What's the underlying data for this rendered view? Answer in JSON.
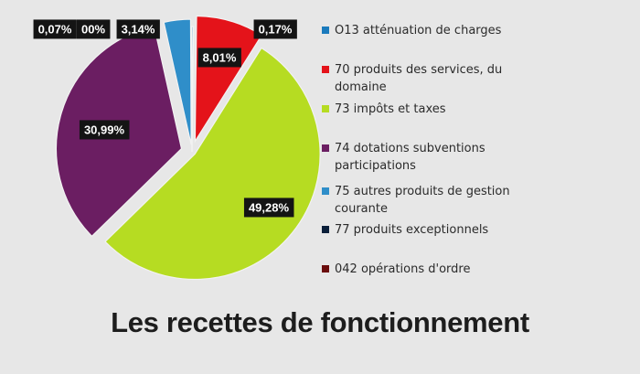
{
  "chart_data": {
    "type": "pie",
    "title": "Les recettes de fonctionnement",
    "series": [
      {
        "name": "O13 atténuation de charges",
        "value": 0.17,
        "label": "0,17% ",
        "color": "#1b7bbd"
      },
      {
        "name": "70 produits des services, du domaine",
        "value": 8.01,
        "label": "8,01%",
        "color": "#e4131a"
      },
      {
        "name": "73 impôts et taxes",
        "value": 49.28,
        "label": "49,28%",
        "color": "#b6dc22"
      },
      {
        "name": "74 dotations subventions participations",
        "value": 30.99,
        "label": "30,99%",
        "color": "#6b1e62"
      },
      {
        "name": "75 autres produits de gestion courante",
        "value": 3.14,
        "label": "3,14%",
        "color": "#2f8ec9"
      },
      {
        "name": "77 produits exceptionnels",
        "value": 0.07,
        "label": "0,07%",
        "color": "#0b1f3a"
      },
      {
        "name": "042 opérations d'ordre",
        "value": 0.0,
        "label": "00%",
        "color": "#6b0d0d"
      }
    ],
    "legend_position": "right"
  }
}
